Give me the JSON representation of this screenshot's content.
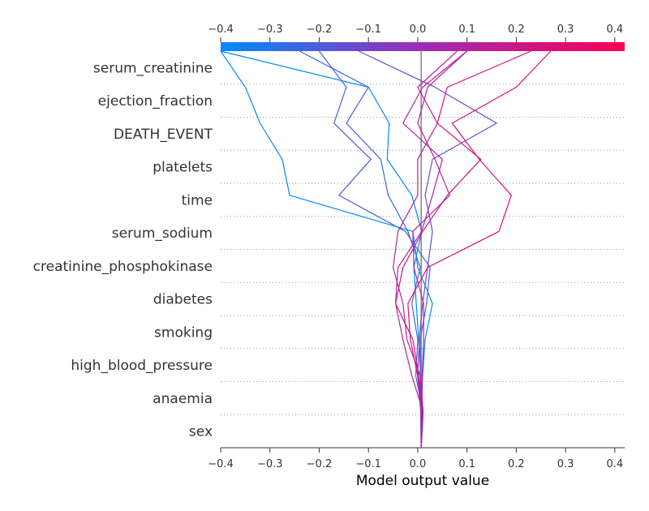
{
  "chart_data": {
    "type": "line",
    "subtype": "shap-decision-plot",
    "xlabel": "Model output value",
    "xlim": [
      -0.4,
      0.42
    ],
    "xticks": [
      -0.4,
      -0.3,
      -0.2,
      -0.1,
      0.0,
      0.1,
      0.2,
      0.3,
      0.4
    ],
    "tick_labels": [
      "−0.4",
      "−0.3",
      "−0.2",
      "−0.1",
      "0.0",
      "0.1",
      "0.2",
      "0.3",
      "0.4"
    ],
    "base_value": 0.007,
    "colorbar": {
      "from": "#008bfb",
      "mid": "#9e2bb5",
      "to": "#ff0052"
    },
    "features": [
      "serum_creatinine",
      "ejection_fraction",
      "DEATH_EVENT",
      "platelets",
      "time",
      "serum_sodium",
      "creatinine_phosphokinase",
      "diabetes",
      "smoking",
      "high_blood_pressure",
      "anaemia",
      "sex"
    ],
    "series": [
      {
        "values": [
          0.007,
          0.008,
          0.006,
          0.002,
          -0.003,
          -0.008,
          0.008,
          -0.012,
          -0.062,
          -0.058,
          -0.1,
          -0.4
        ]
      },
      {
        "values": [
          0.007,
          0.01,
          -0.004,
          0.0,
          -0.012,
          0.005,
          -0.02,
          -0.06,
          -0.075,
          -0.145,
          -0.1,
          -0.24
        ]
      },
      {
        "values": [
          0.007,
          0.006,
          0.005,
          0.005,
          0.018,
          0.025,
          -0.025,
          -0.16,
          -0.095,
          -0.17,
          -0.145,
          -0.2
        ]
      },
      {
        "values": [
          0.007,
          0.008,
          0.01,
          0.015,
          0.03,
          0.0,
          -0.01,
          -0.26,
          -0.275,
          -0.32,
          -0.35,
          -0.4
        ]
      },
      {
        "values": [
          0.007,
          0.006,
          0.0,
          0.003,
          0.01,
          0.02,
          0.03,
          0.015,
          0.03,
          0.16,
          0.035,
          -0.12
        ]
      },
      {
        "values": [
          0.007,
          0.008,
          0.009,
          0.012,
          0.012,
          -0.008,
          -0.01,
          0.065,
          0.035,
          0.0,
          0.02,
          0.1
        ]
      },
      {
        "values": [
          0.007,
          0.011,
          0.005,
          -0.022,
          -0.03,
          -0.05,
          -0.04,
          0.0,
          0.0,
          0.04,
          0.0,
          0.08
        ]
      },
      {
        "values": [
          0.007,
          0.01,
          0.0,
          -0.015,
          -0.02,
          0.02,
          0.165,
          0.19,
          0.125,
          0.07,
          0.2,
          0.27
        ]
      },
      {
        "values": [
          0.007,
          0.009,
          0.002,
          -0.01,
          -0.045,
          -0.03,
          0.01,
          0.06,
          0.128,
          0.04,
          0.06,
          0.23
        ]
      },
      {
        "values": [
          0.007,
          0.011,
          -0.012,
          -0.03,
          -0.045,
          -0.04,
          0.008,
          0.03,
          0.05,
          -0.03,
          0.01,
          0.1
        ]
      }
    ]
  }
}
